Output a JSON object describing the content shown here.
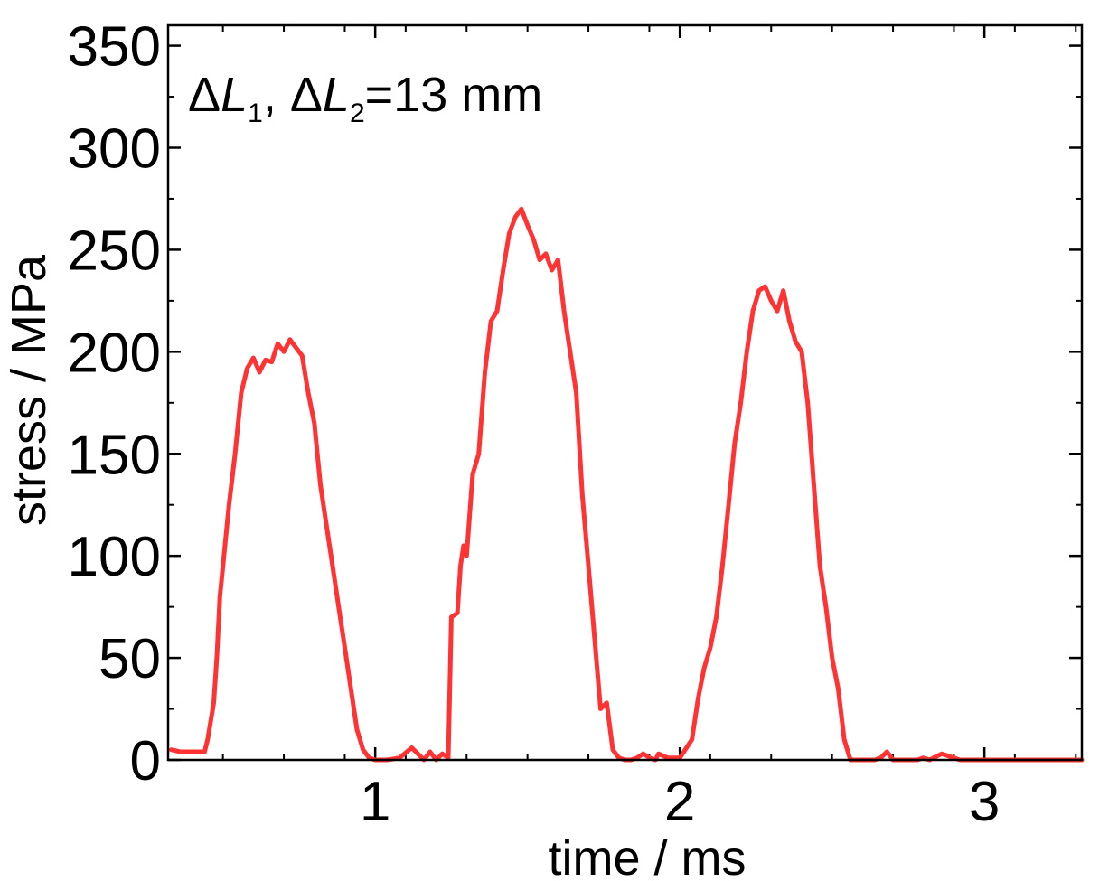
{
  "chart_data": {
    "type": "line",
    "xlabel": "time / ms",
    "ylabel": "stress / MPa",
    "xlim": [
      0.32,
      3.32
    ],
    "ylim": [
      0,
      360
    ],
    "xticks": [
      1,
      2,
      3
    ],
    "yticks": [
      0,
      50,
      100,
      150,
      200,
      250,
      300,
      350
    ],
    "xtick_labels": [
      "1",
      "2",
      "3"
    ],
    "ytick_labels": [
      "0",
      "50",
      "100",
      "150",
      "200",
      "250",
      "300",
      "350"
    ],
    "grid": false,
    "annotation": {
      "delta1": "Δ",
      "L1": "L",
      "sub1": "1",
      "sep": ", ",
      "delta2": "Δ",
      "L2": "L",
      "sub2": "2",
      "value": "=13 mm"
    },
    "series": [
      {
        "color": "#ff3333",
        "x": [
          0.33,
          0.36,
          0.4,
          0.44,
          0.45,
          0.47,
          0.48,
          0.49,
          0.5,
          0.52,
          0.54,
          0.56,
          0.58,
          0.6,
          0.62,
          0.64,
          0.66,
          0.68,
          0.7,
          0.72,
          0.74,
          0.76,
          0.78,
          0.8,
          0.82,
          0.84,
          0.86,
          0.88,
          0.9,
          0.92,
          0.94,
          0.96,
          0.98,
          1.0,
          1.02,
          1.04,
          1.08,
          1.12,
          1.14,
          1.16,
          1.18,
          1.2,
          1.22,
          1.24,
          1.25,
          1.27,
          1.28,
          1.29,
          1.3,
          1.32,
          1.34,
          1.36,
          1.38,
          1.4,
          1.42,
          1.44,
          1.46,
          1.48,
          1.5,
          1.52,
          1.54,
          1.56,
          1.58,
          1.6,
          1.62,
          1.64,
          1.66,
          1.68,
          1.7,
          1.72,
          1.74,
          1.76,
          1.78,
          1.8,
          1.82,
          1.84,
          1.86,
          1.88,
          1.9,
          1.92,
          1.93,
          1.96,
          2.0,
          2.04,
          2.06,
          2.08,
          2.1,
          2.12,
          2.14,
          2.16,
          2.18,
          2.2,
          2.22,
          2.24,
          2.26,
          2.28,
          2.3,
          2.32,
          2.34,
          2.36,
          2.38,
          2.4,
          2.42,
          2.44,
          2.46,
          2.48,
          2.5,
          2.52,
          2.54,
          2.56,
          2.58,
          2.6,
          2.62,
          2.64,
          2.66,
          2.68,
          2.7,
          2.72,
          2.74,
          2.76,
          2.78,
          2.8,
          2.82,
          2.86,
          2.92,
          3.0,
          3.06,
          3.08,
          3.1,
          3.12,
          3.14,
          3.2,
          3.26,
          3.32
        ],
        "y": [
          5,
          4,
          4,
          4,
          10,
          28,
          50,
          80,
          95,
          125,
          150,
          180,
          192,
          197,
          190,
          196,
          195,
          204,
          200,
          206,
          202,
          198,
          180,
          165,
          135,
          115,
          95,
          75,
          55,
          35,
          15,
          5,
          1,
          0,
          0,
          0,
          1,
          6,
          3,
          0,
          4,
          0,
          3,
          1,
          70,
          72,
          95,
          105,
          100,
          140,
          150,
          190,
          215,
          220,
          240,
          258,
          266,
          270,
          262,
          255,
          245,
          248,
          240,
          245,
          220,
          200,
          180,
          130,
          95,
          60,
          25,
          28,
          5,
          1,
          0,
          0,
          1,
          3,
          1,
          0,
          3,
          1,
          1,
          10,
          30,
          45,
          55,
          70,
          95,
          125,
          155,
          175,
          200,
          220,
          230,
          232,
          225,
          220,
          230,
          215,
          205,
          200,
          175,
          135,
          95,
          75,
          50,
          35,
          10,
          0,
          0,
          0,
          0,
          0,
          1,
          4,
          0,
          0,
          0,
          0,
          0,
          1,
          0,
          3,
          0,
          0,
          0,
          0,
          0,
          0,
          0,
          0,
          0,
          0
        ]
      }
    ]
  }
}
